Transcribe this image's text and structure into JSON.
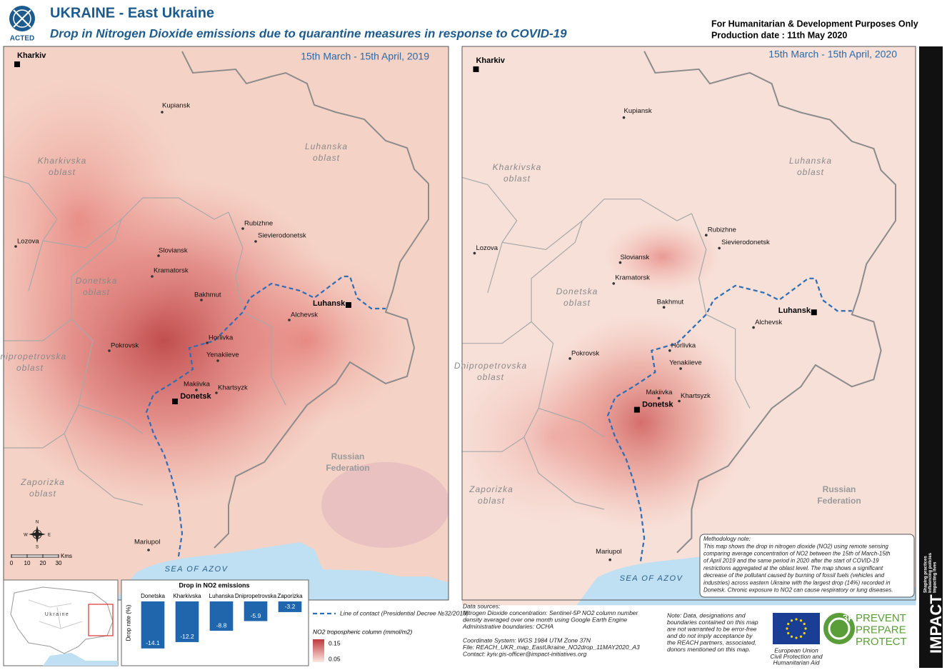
{
  "header": {
    "logo": "ACTED",
    "title": "UKRAINE - East Ukraine",
    "subtitle": "Drop in Nitrogen Dioxide emissions due to quarantine measures in response to COVID-19",
    "disclaimer": "For Humanitarian & Development Purposes Only",
    "production_date": "Production date : 11th May 2020"
  },
  "maps": [
    {
      "period": "15th March - 15th April, 2019"
    },
    {
      "period": "15th March - 15th April, 2020"
    }
  ],
  "cities": [
    "Kharkiv",
    "Kupiansk",
    "Lozova",
    "Rubizhne",
    "Sievierodonetsk",
    "Sloviansk",
    "Kramatorsk",
    "Bakhmut",
    "Luhansk",
    "Alchevsk",
    "Horlivka",
    "Pokrovsk",
    "Yenakiieve",
    "Makiivka",
    "Khartsyzk",
    "Donetsk",
    "Mariupol"
  ],
  "regions": [
    [
      "Kharkivska",
      "oblast"
    ],
    [
      "Luhanska",
      "oblast"
    ],
    [
      "Donetska",
      "oblast"
    ],
    [
      "Dnipropetrovska",
      "oblast"
    ],
    [
      "Zaporizka",
      "oblast"
    ],
    [
      "Russian",
      "Federation"
    ]
  ],
  "sea": "SEA OF AZOV",
  "compass": {
    "n": "N",
    "s": "S",
    "e": "E",
    "w": "W"
  },
  "scale": {
    "ticks": [
      0,
      10,
      20,
      30
    ],
    "unit": "Kms"
  },
  "inset": {
    "label": "Ukraine"
  },
  "chart_data": {
    "type": "bar",
    "title": "Drop in NO2 emissions",
    "y_label": "Drop rate (%)",
    "categories": [
      "Donetska",
      "Kharkivska",
      "Luhanska",
      "Dnipropetrovska",
      "Zaporizka"
    ],
    "values": [
      -14.1,
      -12.2,
      -8.8,
      -5.9,
      -3.2
    ],
    "color": "#1f66ad",
    "ylim": [
      -15,
      0
    ]
  },
  "legend": {
    "contact_line": "Line of contact (Presidential Decree №32/2019)",
    "no2_title": "NO2 tropospheric column (mmol/m2)",
    "high": 0.15,
    "low": 0.05
  },
  "methodology": [
    "Methodology note:",
    "This map shows the drop in nitrogen dioxide (NO2) using remote sensing",
    "comparing average concentration of NO2 between the 15th of March-15th",
    "of April 2019 and the same period in 2020 after the start of COVID-19",
    "restrictions aggregated at the oblast level. The map shows a significant",
    "decrease of the pollutant caused by burning of fossil fuels (vehicles and",
    "industries) across eastern Ukraine with the largest drop (14%) recorded in",
    "Donetsk. Chronic exposure to NO2 can cause respiratory or lung diseases."
  ],
  "sources": {
    "lines": [
      "Data sources:",
      "Nitrogen Dioxide concentration: Sentinel-5P NO2 column number",
      "density averaged over one month using Google Earth Engine",
      "Administrative boundaries: OCHA"
    ],
    "tech": [
      "Coordinate System: WGS 1984 UTM Zone 37N",
      "File: REACH_UKR_map_EastUkraine_NO2drop_11MAY2020_A3",
      "Contact: kyiv.gis-officer@impact-initiatives.org"
    ]
  },
  "note": [
    "Note: Data, designations and",
    "boundaries contained on this map",
    "are not warranted to be error-free",
    "and do not imply acceptance by",
    "the REACH partners, associated,",
    "donors mentioned on this map."
  ],
  "eu": [
    "European Union",
    "Civil Protection and",
    "Humanitarian Aid"
  ],
  "prevent": {
    "badge": "3P",
    "lines": [
      "PREVENT",
      "PREPARE",
      "PROTECT"
    ]
  },
  "impact": {
    "name": "IMPACT",
    "tagline": [
      "Shaping practices",
      "Influencing policies",
      "Impacting lives"
    ]
  }
}
